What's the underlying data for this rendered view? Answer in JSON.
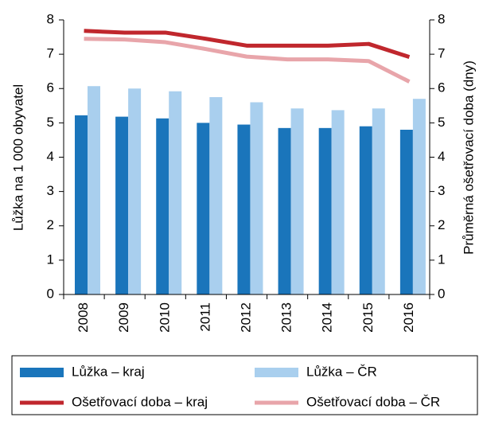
{
  "chart_data": {
    "type": "bar-line",
    "y_label": "Lůžka na 1 000 obyvatel",
    "y2_label": "Průměrná ošetřovací doba (dny)",
    "categories": [
      "2008",
      "2009",
      "2010",
      "2011",
      "2012",
      "2013",
      "2014",
      "2015",
      "2016"
    ],
    "series": [
      {
        "name": "Lůžka – kraj",
        "type": "bar",
        "color": "#1a75bb",
        "values": [
          5.22,
          5.18,
          5.13,
          5.0,
          4.95,
          4.85,
          4.85,
          4.9,
          4.8
        ]
      },
      {
        "name": "Lůžka – ČR",
        "type": "bar",
        "color": "#a9cfee",
        "values": [
          6.07,
          6.0,
          5.92,
          5.75,
          5.6,
          5.42,
          5.37,
          5.42,
          5.7
        ]
      },
      {
        "name": "Ošetřovací doba – kraj",
        "type": "line",
        "axis": "y2",
        "color": "#c0272d",
        "values": [
          7.68,
          7.63,
          7.63,
          7.45,
          7.25,
          7.25,
          7.25,
          7.3,
          6.92
        ]
      },
      {
        "name": "Ošetřovací doba – ČR",
        "type": "line",
        "axis": "y2",
        "color": "#e8a5aa",
        "values": [
          7.45,
          7.43,
          7.35,
          7.15,
          6.93,
          6.85,
          6.85,
          6.8,
          6.2
        ]
      }
    ],
    "ylim": [
      0,
      8
    ],
    "yticks": [
      0,
      1,
      2,
      3,
      4,
      5,
      6,
      7,
      8
    ],
    "y2lim": [
      0,
      8
    ],
    "y2ticks": [
      0,
      1,
      2,
      3,
      4,
      5,
      6,
      7,
      8
    ]
  }
}
